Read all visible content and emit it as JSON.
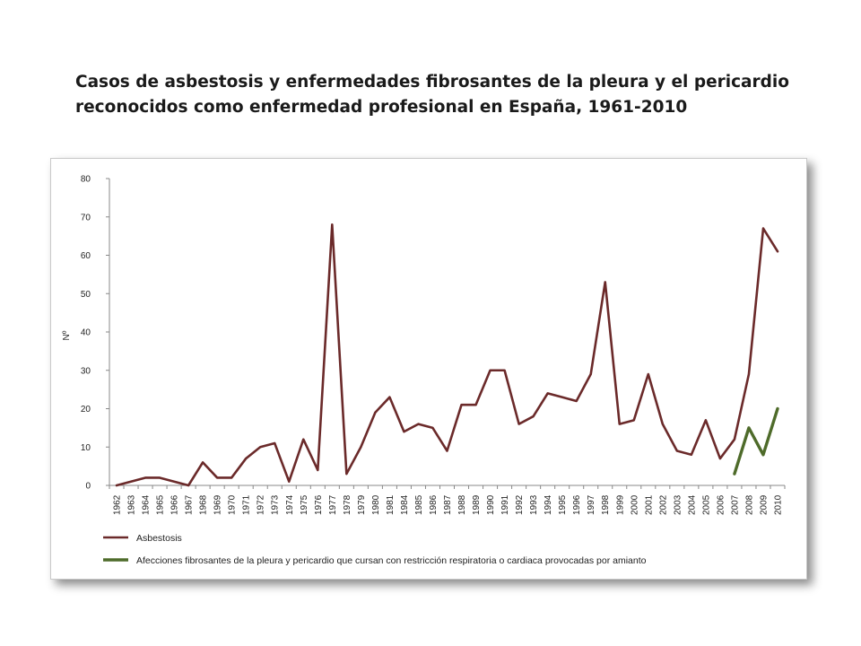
{
  "title": {
    "line1": "Casos de asbestosis y enfermedades fibrosantes de la pleura y el pericardio",
    "line2": "reconocidos como enfermedad profesional en España, 1961-2010"
  },
  "chart_data": {
    "type": "line",
    "ylabel": "Nº",
    "xlabel": "",
    "ylim": [
      0,
      80
    ],
    "yticks": [
      0,
      10,
      20,
      30,
      40,
      50,
      60,
      70,
      80
    ],
    "grid": false,
    "legend_position": "bottom",
    "categories": [
      "1962",
      "1963",
      "1964",
      "1965",
      "1966",
      "1967",
      "1968",
      "1969",
      "1970",
      "1971",
      "1972",
      "1973",
      "1974",
      "1975",
      "1976",
      "1977",
      "1978",
      "1979",
      "1980",
      "1981",
      "1984",
      "1985",
      "1986",
      "1987",
      "1988",
      "1989",
      "1990",
      "1991",
      "1992",
      "1993",
      "1994",
      "1995",
      "1996",
      "1997",
      "1998",
      "1999",
      "2000",
      "2001",
      "2002",
      "2003",
      "2004",
      "2005",
      "2006",
      "2007",
      "2008",
      "2009",
      "2010"
    ],
    "series": [
      {
        "name": "Asbestosis",
        "color": "#6b2a2a",
        "values": [
          0,
          1,
          2,
          2,
          1,
          0,
          6,
          2,
          2,
          7,
          10,
          11,
          1,
          12,
          4,
          68,
          3,
          10,
          19,
          23,
          14,
          16,
          15,
          9,
          21,
          21,
          30,
          30,
          16,
          18,
          24,
          23,
          22,
          29,
          53,
          16,
          17,
          29,
          16,
          9,
          8,
          17,
          7,
          12,
          29,
          67,
          61
        ]
      },
      {
        "name": "Afecciones fibrosantes de la pleura y pericardio que cursan con restricción respiratoria o cardiaca provocadas por amianto",
        "color": "#4e6b2a",
        "values": [
          null,
          null,
          null,
          null,
          null,
          null,
          null,
          null,
          null,
          null,
          null,
          null,
          null,
          null,
          null,
          null,
          null,
          null,
          null,
          null,
          null,
          null,
          null,
          null,
          null,
          null,
          null,
          null,
          null,
          null,
          null,
          null,
          null,
          null,
          null,
          null,
          null,
          null,
          null,
          null,
          null,
          null,
          null,
          3,
          15,
          8,
          20
        ]
      }
    ]
  }
}
